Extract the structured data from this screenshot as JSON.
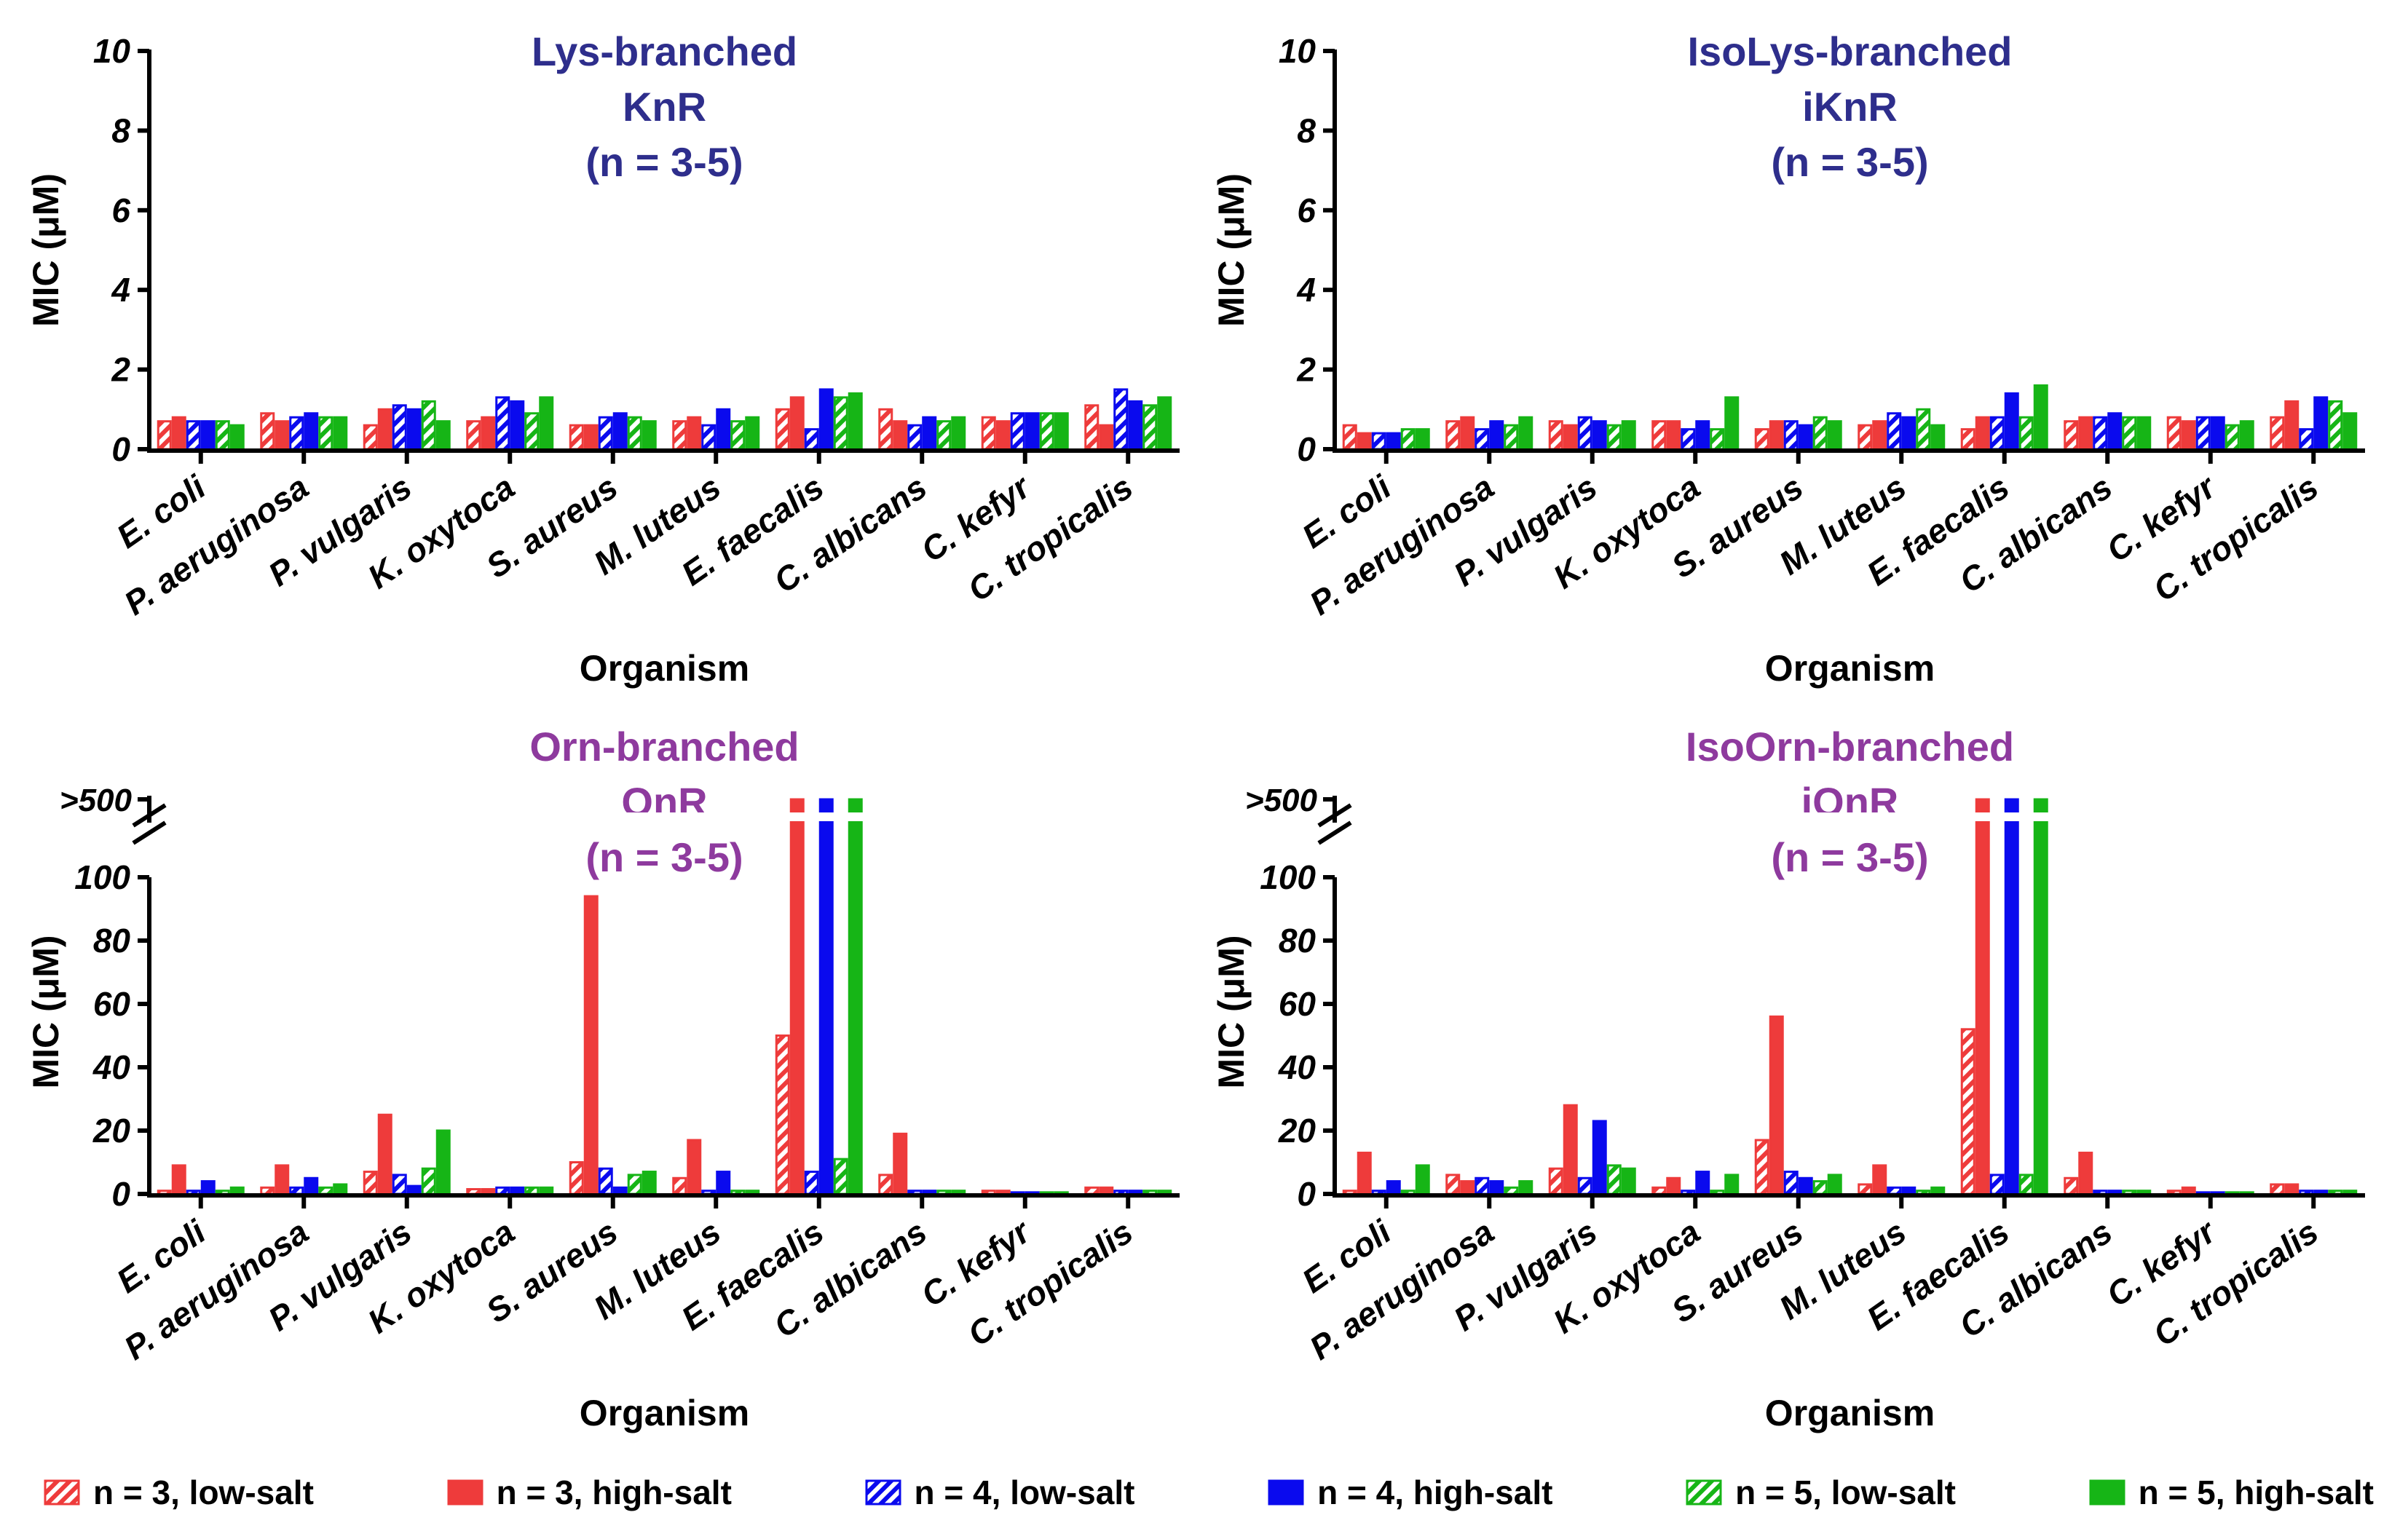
{
  "colors": {
    "red": "#EE3B3B",
    "blue": "#0A0AEE",
    "green": "#16B516",
    "lys_title": "#2E2E8C",
    "orn_title": "#8E3A9E",
    "axis": "#000000"
  },
  "legend": [
    {
      "label": "n = 3, low-salt",
      "color": "red",
      "pattern": "hatched"
    },
    {
      "label": "n = 3, high-salt",
      "color": "red",
      "pattern": "solid"
    },
    {
      "label": "n = 4, low-salt",
      "color": "blue",
      "pattern": "hatched"
    },
    {
      "label": "n = 4, high-salt",
      "color": "blue",
      "pattern": "solid"
    },
    {
      "label": "n = 5, low-salt",
      "color": "green",
      "pattern": "hatched"
    },
    {
      "label": "n = 5, high-salt",
      "color": "green",
      "pattern": "solid"
    }
  ],
  "chart_data": [
    {
      "type": "bar",
      "panel": "top-left",
      "title_lines": [
        "Lys-branched",
        "KnR",
        "(n = 3-5)"
      ],
      "title_color": "lys_title",
      "xlabel": "Organism",
      "ylabel": "MIC (μM)",
      "ylim": [
        0,
        10
      ],
      "yticks": [
        "0",
        "2",
        "4",
        "6",
        "8",
        "10"
      ],
      "ytick_values": [
        0,
        2,
        4,
        6,
        8,
        10
      ],
      "categories": [
        "E. coli",
        "P. aeruginosa",
        "P. vulgaris",
        "K. oxytoca",
        "S. aureus",
        "M. luteus",
        "E. faecalis",
        "C. albicans",
        "C. kefyr",
        "C. tropicalis"
      ],
      "series": [
        {
          "name": "n = 3, low-salt",
          "values": [
            0.7,
            0.9,
            0.6,
            0.7,
            0.6,
            0.7,
            1.0,
            1.0,
            0.8,
            1.1
          ]
        },
        {
          "name": "n = 3, high-salt",
          "values": [
            0.8,
            0.7,
            1.0,
            0.8,
            0.6,
            0.8,
            1.3,
            0.7,
            0.7,
            0.6
          ]
        },
        {
          "name": "n = 4, low-salt",
          "values": [
            0.7,
            0.8,
            1.1,
            1.3,
            0.8,
            0.6,
            0.5,
            0.6,
            0.9,
            1.5
          ]
        },
        {
          "name": "n = 4, high-salt",
          "values": [
            0.7,
            0.9,
            1.0,
            1.2,
            0.9,
            1.0,
            1.5,
            0.8,
            0.9,
            1.2
          ]
        },
        {
          "name": "n = 5, low-salt",
          "values": [
            0.7,
            0.8,
            1.2,
            0.9,
            0.8,
            0.7,
            1.3,
            0.7,
            0.9,
            1.1
          ]
        },
        {
          "name": "n = 5, high-salt",
          "values": [
            0.6,
            0.8,
            0.7,
            1.3,
            0.7,
            0.8,
            1.4,
            0.8,
            0.9,
            1.3
          ]
        }
      ]
    },
    {
      "type": "bar",
      "panel": "top-right",
      "title_lines": [
        "IsoLys-branched",
        "iKnR",
        "(n = 3-5)"
      ],
      "title_color": "lys_title",
      "xlabel": "Organism",
      "ylabel": "MIC (μM)",
      "ylim": [
        0,
        10
      ],
      "yticks": [
        "0",
        "2",
        "4",
        "6",
        "8",
        "10"
      ],
      "ytick_values": [
        0,
        2,
        4,
        6,
        8,
        10
      ],
      "categories": [
        "E. coli",
        "P. aeruginosa",
        "P. vulgaris",
        "K. oxytoca",
        "S. aureus",
        "M. luteus",
        "E. faecalis",
        "C. albicans",
        "C. kefyr",
        "C. tropicalis"
      ],
      "series": [
        {
          "name": "n = 3, low-salt",
          "values": [
            0.6,
            0.7,
            0.7,
            0.7,
            0.5,
            0.6,
            0.5,
            0.7,
            0.8,
            0.8
          ]
        },
        {
          "name": "n = 3, high-salt",
          "values": [
            0.4,
            0.8,
            0.6,
            0.7,
            0.7,
            0.7,
            0.8,
            0.8,
            0.7,
            1.2
          ]
        },
        {
          "name": "n = 4, low-salt",
          "values": [
            0.4,
            0.5,
            0.8,
            0.5,
            0.7,
            0.9,
            0.8,
            0.8,
            0.8,
            0.5
          ]
        },
        {
          "name": "n = 4, high-salt",
          "values": [
            0.4,
            0.7,
            0.7,
            0.7,
            0.6,
            0.8,
            1.4,
            0.9,
            0.8,
            1.3
          ]
        },
        {
          "name": "n = 5, low-salt",
          "values": [
            0.5,
            0.6,
            0.6,
            0.5,
            0.8,
            1.0,
            0.8,
            0.8,
            0.6,
            1.2
          ]
        },
        {
          "name": "n = 5, high-salt",
          "values": [
            0.5,
            0.8,
            0.7,
            1.3,
            0.7,
            0.6,
            1.6,
            0.8,
            0.7,
            0.9
          ]
        }
      ]
    },
    {
      "type": "bar",
      "panel": "bottom-left",
      "title_lines": [
        "Orn-branched",
        "OnR",
        "(n = 3-5)"
      ],
      "title_color": "orn_title",
      "xlabel": "Organism",
      "ylabel": "MIC (μM)",
      "ylim": [
        0,
        100
      ],
      "axis_break": true,
      "break_label": ">500",
      "yticks": [
        "0",
        "20",
        "40",
        "60",
        "80",
        "100"
      ],
      "ytick_values": [
        0,
        20,
        40,
        60,
        80,
        100
      ],
      "categories": [
        "E. coli",
        "P. aeruginosa",
        "P. vulgaris",
        "K. oxytoca",
        "S. aureus",
        "M. luteus",
        "E. faecalis",
        "C. albicans",
        "C. kefyr",
        "C. tropicalis"
      ],
      "series": [
        {
          "name": "n = 3, low-salt",
          "values": [
            1,
            2,
            7,
            1.5,
            10,
            5,
            50,
            6,
            1,
            2
          ]
        },
        {
          "name": "n = 3, high-salt",
          "values": [
            9,
            9,
            25,
            1.5,
            94,
            17,
            500,
            19,
            1,
            2
          ]
        },
        {
          "name": "n = 4, low-salt",
          "values": [
            1,
            2,
            6,
            2,
            8,
            1,
            7,
            1,
            0.5,
            1
          ]
        },
        {
          "name": "n = 4, high-salt",
          "values": [
            4,
            5,
            2.5,
            2,
            2,
            7,
            500,
            1,
            0.5,
            1
          ]
        },
        {
          "name": "n = 5, low-salt",
          "values": [
            1,
            2,
            8,
            2,
            6,
            1,
            11,
            1,
            0.5,
            1
          ]
        },
        {
          "name": "n = 5, high-salt",
          "values": [
            2,
            3,
            20,
            2,
            7,
            1,
            500,
            1,
            0.5,
            1
          ]
        }
      ]
    },
    {
      "type": "bar",
      "panel": "bottom-right",
      "title_lines": [
        "IsoOrn-branched",
        "iOnR",
        "(n = 3-5)"
      ],
      "title_color": "orn_title",
      "xlabel": "Organism",
      "ylabel": "MIC (μM)",
      "ylim": [
        0,
        100
      ],
      "axis_break": true,
      "break_label": ">500",
      "yticks": [
        "0",
        "20",
        "40",
        "60",
        "80",
        "100"
      ],
      "ytick_values": [
        0,
        20,
        40,
        60,
        80,
        100
      ],
      "categories": [
        "E. coli",
        "P. aeruginosa",
        "P. vulgaris",
        "K. oxytoca",
        "S. aureus",
        "M. luteus",
        "E. faecalis",
        "C. albicans",
        "C. kefyr",
        "C. tropicalis"
      ],
      "series": [
        {
          "name": "n = 3, low-salt",
          "values": [
            1,
            6,
            8,
            2,
            17,
            3,
            52,
            5,
            1,
            3
          ]
        },
        {
          "name": "n = 3, high-salt",
          "values": [
            13,
            4,
            28,
            5,
            56,
            9,
            500,
            13,
            2,
            3
          ]
        },
        {
          "name": "n = 4, low-salt",
          "values": [
            1,
            5,
            5,
            1,
            7,
            2,
            6,
            1,
            0.5,
            1
          ]
        },
        {
          "name": "n = 4, high-salt",
          "values": [
            4,
            4,
            23,
            7,
            5,
            2,
            500,
            1,
            0.5,
            1
          ]
        },
        {
          "name": "n = 5, low-salt",
          "values": [
            1,
            2,
            9,
            1,
            4,
            1,
            6,
            1,
            0.5,
            1
          ]
        },
        {
          "name": "n = 5, high-salt",
          "values": [
            9,
            4,
            8,
            6,
            6,
            2,
            500,
            1,
            0.5,
            1
          ]
        }
      ]
    }
  ]
}
